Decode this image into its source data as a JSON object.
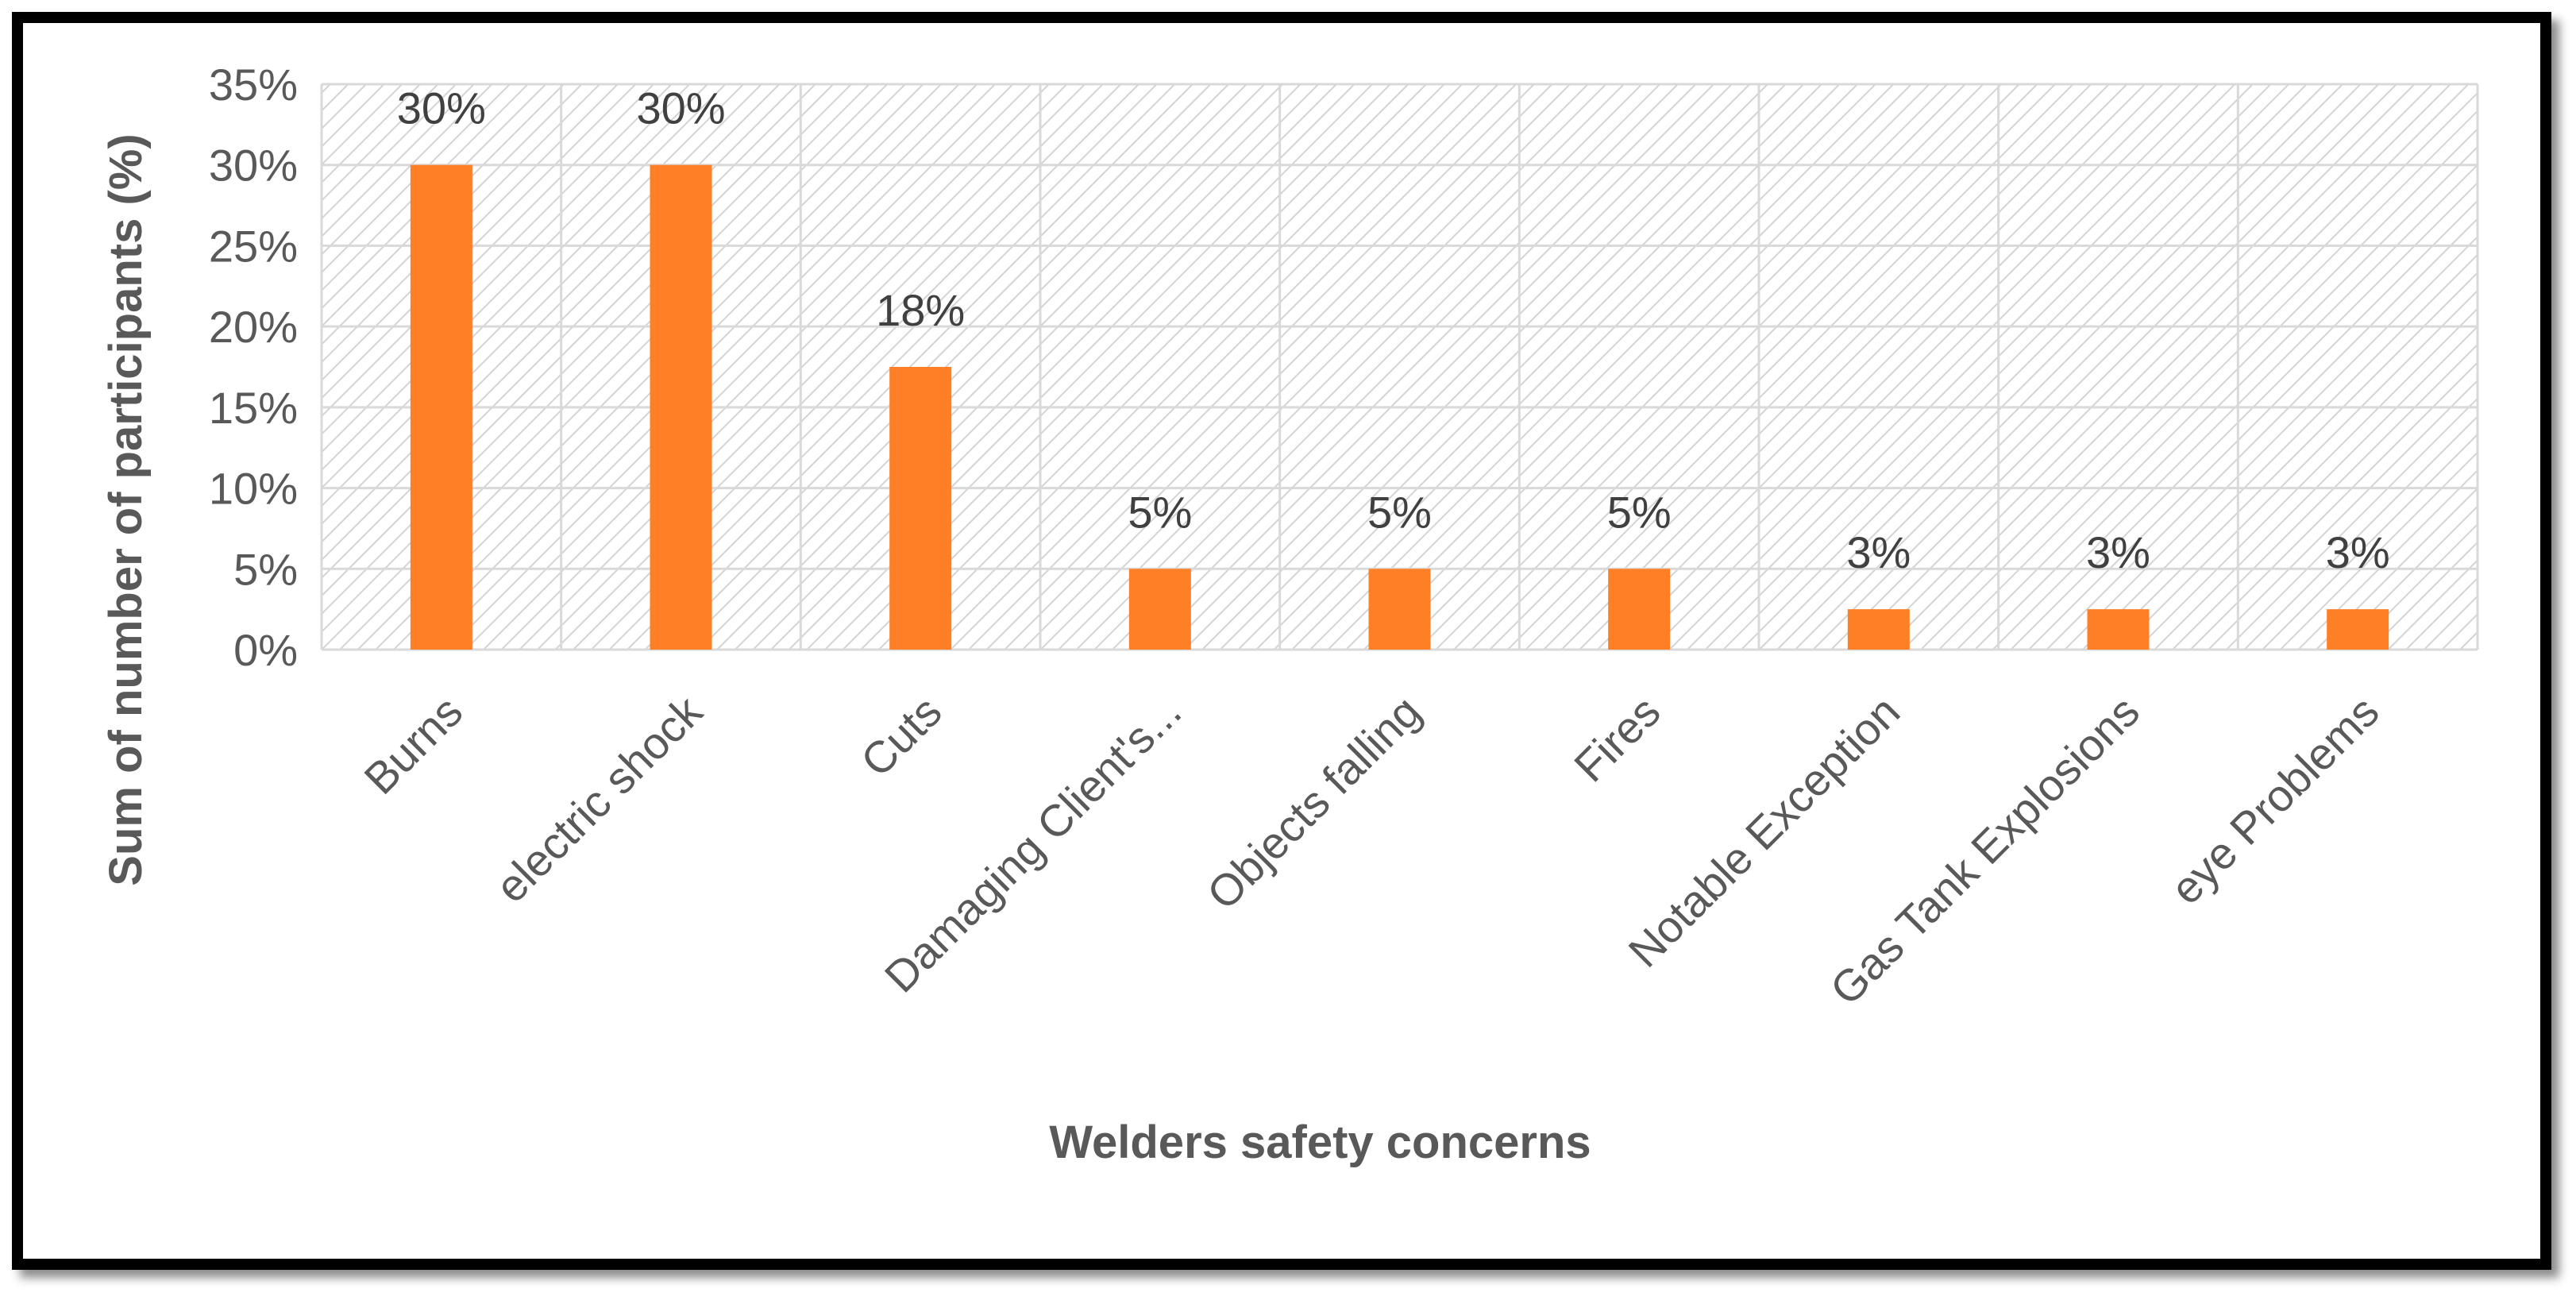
{
  "chart_data": {
    "type": "bar",
    "title": "",
    "xlabel": "Welders safety concerns",
    "ylabel": "Sum of number of participants (%)",
    "categories": [
      "Burns",
      "electric shock",
      "Cuts",
      "Damaging Client's...",
      "Objects falling",
      "Fires",
      "Notable Exception",
      "Gas Tank Explosions",
      "eye Problems"
    ],
    "values": [
      30,
      30,
      17.5,
      5,
      5,
      5,
      2.5,
      2.5,
      2.5
    ],
    "data_labels": [
      "30%",
      "30%",
      "18%",
      "5%",
      "5%",
      "5%",
      "3%",
      "3%",
      "3%"
    ],
    "y_ticks": [
      0,
      5,
      10,
      15,
      20,
      25,
      30,
      35
    ],
    "y_tick_labels": [
      "0%",
      "5%",
      "10%",
      "15%",
      "20%",
      "25%",
      "30%",
      "35%"
    ],
    "ylim": [
      0,
      35
    ],
    "grid": true,
    "legend": "none",
    "bar_color": "#FF7F27",
    "grid_color": "#D9D9D9",
    "plot_pattern": "diagonal-hatch",
    "frame_color": "#000000"
  }
}
